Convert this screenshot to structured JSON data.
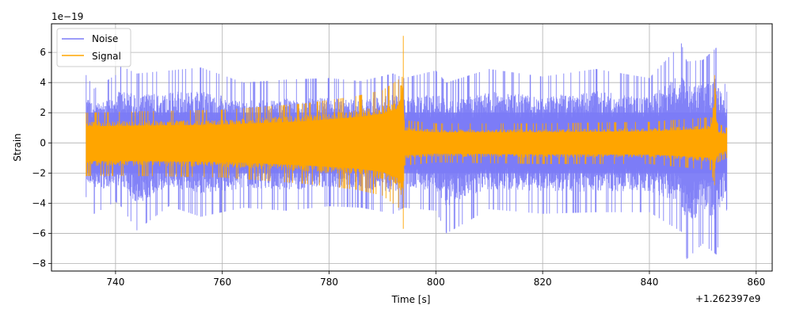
{
  "chart_data": {
    "type": "line",
    "xlabel": "Time [s]",
    "ylabel": "Strain",
    "y_multiplier": "1e−19",
    "x_offset": "+1.262397e9",
    "xlim": [
      728.0,
      863.0
    ],
    "ylim": [
      -8.5,
      7.9
    ],
    "x_ticks": [
      740,
      760,
      780,
      800,
      820,
      840,
      860
    ],
    "y_ticks": [
      -8,
      -6,
      -4,
      -2,
      0,
      2,
      4,
      6
    ],
    "grid": true,
    "legend_position": "top-left",
    "series": [
      {
        "name": "Noise",
        "color": "#7b7bf7",
        "envelope": [
          {
            "x": 734.5,
            "top": 4.5,
            "bottom": -3.6
          },
          {
            "x": 736.0,
            "top": 3.6,
            "bottom": -4.7
          },
          {
            "x": 740.0,
            "top": 4.5,
            "bottom": -3.9
          },
          {
            "x": 741.0,
            "top": 5.1,
            "bottom": -4.2
          },
          {
            "x": 744.0,
            "top": 4.6,
            "bottom": -5.8
          },
          {
            "x": 750.0,
            "top": 4.8,
            "bottom": -4.2
          },
          {
            "x": 756.0,
            "top": 5.0,
            "bottom": -4.9
          },
          {
            "x": 764.0,
            "top": 4.0,
            "bottom": -4.3
          },
          {
            "x": 772.0,
            "top": 4.2,
            "bottom": -4.5
          },
          {
            "x": 780.0,
            "top": 4.3,
            "bottom": -4.2
          },
          {
            "x": 786.0,
            "top": 4.1,
            "bottom": -4.3
          },
          {
            "x": 792.0,
            "top": 4.6,
            "bottom": -4.7
          },
          {
            "x": 794.0,
            "top": 4.3,
            "bottom": -4.3
          },
          {
            "x": 800.0,
            "top": 4.8,
            "bottom": -4.5
          },
          {
            "x": 802.0,
            "top": 4.0,
            "bottom": -6.0
          },
          {
            "x": 810.0,
            "top": 4.9,
            "bottom": -4.4
          },
          {
            "x": 820.0,
            "top": 4.4,
            "bottom": -4.7
          },
          {
            "x": 830.0,
            "top": 4.9,
            "bottom": -4.6
          },
          {
            "x": 840.0,
            "top": 4.3,
            "bottom": -4.6
          },
          {
            "x": 846.0,
            "top": 6.6,
            "bottom": -5.9
          },
          {
            "x": 847.0,
            "top": 5.4,
            "bottom": -7.7
          },
          {
            "x": 850.0,
            "top": 5.5,
            "bottom": -6.7
          },
          {
            "x": 852.5,
            "top": 6.3,
            "bottom": -7.4
          },
          {
            "x": 854.5,
            "top": 3.4,
            "bottom": -4.4
          }
        ],
        "core_band": [
          -2.0,
          2.0
        ]
      },
      {
        "name": "Signal",
        "color": "#ffa500",
        "envelope": [
          {
            "x": 734.5,
            "top": 2.0,
            "bottom": -2.2
          },
          {
            "x": 745.0,
            "top": 2.1,
            "bottom": -2.2
          },
          {
            "x": 760.0,
            "top": 2.2,
            "bottom": -2.3
          },
          {
            "x": 775.0,
            "top": 2.6,
            "bottom": -2.7
          },
          {
            "x": 785.0,
            "top": 3.1,
            "bottom": -3.1
          },
          {
            "x": 790.0,
            "top": 3.5,
            "bottom": -3.5
          },
          {
            "x": 793.0,
            "top": 4.2,
            "bottom": -4.3
          },
          {
            "x": 793.9,
            "top": 7.1,
            "bottom": -5.7
          },
          {
            "x": 794.1,
            "top": 1.5,
            "bottom": -1.5
          },
          {
            "x": 800.0,
            "top": 1.3,
            "bottom": -1.3
          },
          {
            "x": 820.0,
            "top": 1.3,
            "bottom": -1.4
          },
          {
            "x": 840.0,
            "top": 1.4,
            "bottom": -1.4
          },
          {
            "x": 851.5,
            "top": 1.7,
            "bottom": -1.8
          },
          {
            "x": 852.2,
            "top": 4.5,
            "bottom": -2.8
          },
          {
            "x": 852.8,
            "top": 1.3,
            "bottom": -1.3
          },
          {
            "x": 854.5,
            "top": 1.0,
            "bottom": -1.0
          }
        ]
      }
    ]
  }
}
